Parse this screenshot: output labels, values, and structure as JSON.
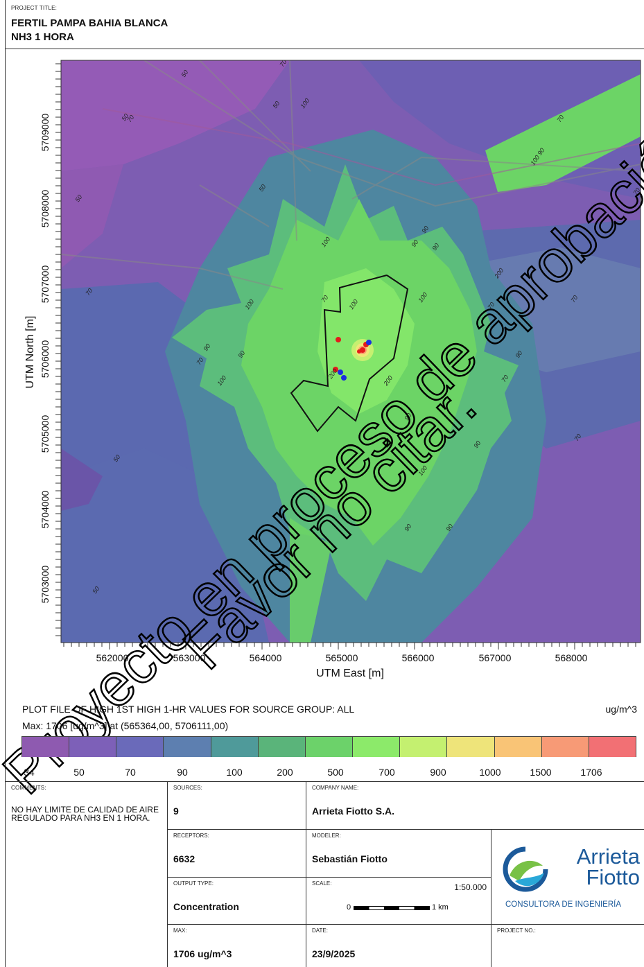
{
  "header": {
    "caption": "PROJECT TITLE:",
    "title_line1": "FERTIL PAMPA BAHIA BLANCA",
    "title_line2": "NH3 1 HORA"
  },
  "map": {
    "x_ticks": [
      "562000",
      "563000",
      "564000",
      "565000",
      "566000",
      "567000",
      "568000"
    ],
    "y_ticks": [
      "5709000",
      "5708000",
      "5707000",
      "5706000",
      "5705000",
      "5704000",
      "5703000"
    ],
    "x_label": "UTM East [m]",
    "y_label": "UTM North [m]",
    "contour_labels": [
      "50",
      "50",
      "50",
      "50",
      "50",
      "50",
      "50",
      "70",
      "70",
      "70",
      "70",
      "70",
      "70",
      "70",
      "70",
      "70",
      "70",
      "90",
      "90",
      "90",
      "90",
      "90",
      "90",
      "90",
      "100",
      "100",
      "100",
      "100",
      "100",
      "100",
      "100",
      "200",
      "200",
      "200",
      "90",
      "90",
      "90",
      "100 90",
      "70"
    ],
    "watermark_line1": "Proyecto en proceso de aprobación",
    "watermark_line2": "Favor no citar.",
    "colors": {
      "c34": "#8e5ab0",
      "c50": "#7b5fb8",
      "c70": "#5d6ab0",
      "c90": "#4d86a2",
      "c100": "#56b080",
      "c200": "#70d264",
      "c500": "#86ea6a",
      "c700": "#c6f070",
      "c900": "#f0e678",
      "c1000": "#f8c070",
      "c1500": "#f89070",
      "c1706": "#f06a70"
    }
  },
  "plot_info": {
    "title": "PLOT FILE OF HIGH 1ST HIGH 1-HR VALUES FOR SOURCE GROUP: ALL",
    "units": "ug/m^3",
    "max_line": "Max:  1706  [ug/m^3]  at  (565364,00, 5706111,00)"
  },
  "legend": {
    "labels": [
      "34",
      "50",
      "70",
      "90",
      "100",
      "200",
      "500",
      "700",
      "900",
      "1000",
      "1500",
      "1706"
    ],
    "colors": [
      "#8e5ab0",
      "#7d60b8",
      "#6a6aba",
      "#5d7fb0",
      "#4f9a9a",
      "#5ab47a",
      "#6cd26a",
      "#8cea6a",
      "#c4f070",
      "#eee47a",
      "#f9c476",
      "#f79a76",
      "#f27074"
    ]
  },
  "info": {
    "comments_cap": "COMMENTS:",
    "comments": "NO HAY LIMITE DE CALIDAD DE AIRE REGULADO PARA NH3 EN 1 HORA.",
    "sources_cap": "SOURCES:",
    "sources": "9",
    "company_cap": "COMPANY NAME:",
    "company": "Arrieta Fiotto S.A.",
    "receptors_cap": "RECEPTORS:",
    "receptors": "6632",
    "modeler_cap": "MODELER:",
    "modeler": "Sebastián Fiotto",
    "output_cap": "OUTPUT TYPE:",
    "output": "Concentration",
    "scale_cap": "SCALE:",
    "scale": "1:50.000",
    "scale_zero": "0",
    "scale_km": "1 km",
    "max_cap": "MAX:",
    "max": "1706 ug/m^3",
    "date_cap": "DATE:",
    "date": "23/9/2025",
    "project_no_cap": "PROJECT NO.:",
    "logo_line1": "Arrieta",
    "logo_line2": "Fiotto",
    "logo_sub": "CONSULTORA DE INGENIERÍA"
  }
}
